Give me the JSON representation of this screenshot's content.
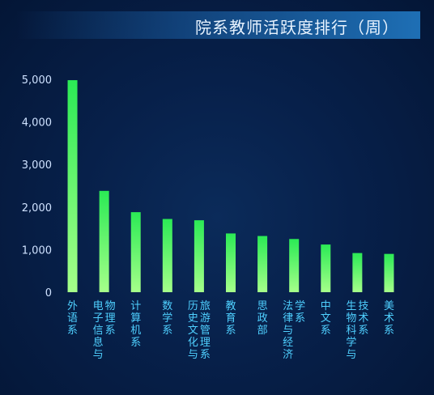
{
  "title": "院系教师活跃度排行（周）",
  "chart_data": {
    "type": "bar",
    "title": "院系教师活跃度排行（周）",
    "xlabel": "",
    "ylabel": "",
    "ylim": [
      0,
      5000
    ],
    "yticks": [
      "0",
      "1,000",
      "2,000",
      "3,000",
      "4,000",
      "5,000"
    ],
    "grid": false,
    "categories": [
      "外语系",
      "物理系电子信息与",
      "计算机系",
      "数学系",
      "旅游管理系历史文化与",
      "教育系",
      "思政部",
      "学系法律与经济",
      "中文系",
      "技术系生物科学与",
      "美术系"
    ],
    "category_lines": [
      [
        "外语系"
      ],
      [
        "物理系",
        "电子信息与"
      ],
      [
        "计算机系"
      ],
      [
        "数学系"
      ],
      [
        "旅游管理系",
        "历史文化与"
      ],
      [
        "教育系"
      ],
      [
        "思政部"
      ],
      [
        "学系",
        "法律与经济"
      ],
      [
        "中文系"
      ],
      [
        "技术系",
        "生物科学与"
      ],
      [
        "美术系"
      ]
    ],
    "values": [
      4980,
      2380,
      1880,
      1720,
      1690,
      1380,
      1320,
      1250,
      1120,
      920,
      900
    ],
    "colors": {
      "bar_top": "#2bea55",
      "bar_bottom": "#a6ff8a",
      "axis_text": "#cfe2ff",
      "label_text": "#4fd0ff"
    }
  }
}
